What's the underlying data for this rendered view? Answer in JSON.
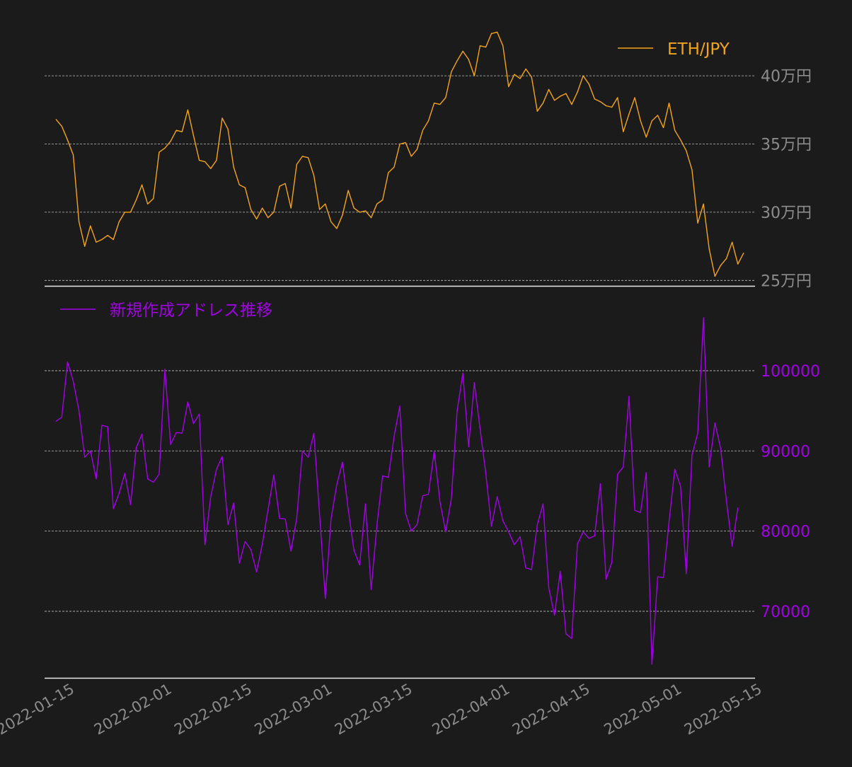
{
  "colors": {
    "background": "#1b1b1b",
    "eth_line": "#f5a31a",
    "address_line": "#a300e8",
    "grid": "#bdbdbd",
    "axis_line": "#e8e8e8",
    "tick_label_gray": "#8c8c8c"
  },
  "chart_data": [
    {
      "type": "line",
      "panel": "top",
      "legend_label": "ETH/JPY",
      "legend_position": "top-right",
      "y_axis_side": "right",
      "ylim": [
        246000,
        440000
      ],
      "yticks": [
        250000,
        300000,
        350000,
        400000
      ],
      "ytick_labels": [
        "25万円",
        "30万円",
        "35万円",
        "40万円"
      ],
      "x_start": "2022-01-12",
      "x_end": "2022-05-10",
      "series": [
        {
          "name": "ETH/JPY",
          "values": [
            368000,
            363000,
            353000,
            342000,
            293000,
            275000,
            290000,
            278000,
            280000,
            283000,
            280000,
            293000,
            300000,
            300000,
            309000,
            320000,
            306000,
            310000,
            344000,
            347000,
            352000,
            360000,
            359000,
            375000,
            356000,
            338000,
            337000,
            332000,
            338000,
            369000,
            361000,
            333000,
            320000,
            318000,
            302000,
            295000,
            303000,
            296000,
            300000,
            319000,
            321000,
            303000,
            335000,
            341000,
            340000,
            327000,
            302000,
            306000,
            293000,
            288000,
            298000,
            316000,
            303000,
            300000,
            301000,
            296000,
            306000,
            309000,
            329000,
            333000,
            350000,
            351000,
            341000,
            346000,
            360000,
            367000,
            380000,
            379000,
            384000,
            403000,
            411000,
            418000,
            412000,
            400000,
            422000,
            421000,
            431000,
            432000,
            422000,
            392000,
            401000,
            398000,
            405000,
            399000,
            374000,
            380000,
            390000,
            382000,
            385000,
            387000,
            379000,
            388000,
            400000,
            394000,
            383000,
            381000,
            378000,
            377000,
            384000,
            359000,
            372000,
            384000,
            367000,
            355000,
            367000,
            371000,
            362000,
            380000,
            360000,
            353000,
            345000,
            331000,
            292000,
            306000,
            273000,
            253000,
            261000,
            266000,
            278000,
            262000,
            270000
          ]
        }
      ]
    },
    {
      "type": "line",
      "panel": "bottom",
      "legend_label": "新規作成アドレス推移",
      "legend_position": "top-left",
      "y_axis_side": "right",
      "ylim": [
        61700,
        109700
      ],
      "yticks": [
        70000,
        80000,
        90000,
        100000
      ],
      "ytick_labels": [
        "70000",
        "80000",
        "90000",
        "100000"
      ],
      "x_start": "2022-01-12",
      "x_end": "2022-05-10",
      "series": [
        {
          "name": "新規作成アドレス推移",
          "values": [
            93700,
            94200,
            101100,
            98700,
            95000,
            89200,
            90000,
            86500,
            93200,
            93000,
            82800,
            84700,
            87200,
            83300,
            90400,
            92100,
            86500,
            86100,
            87100,
            100200,
            90800,
            92300,
            92200,
            96100,
            93400,
            94600,
            78300,
            84300,
            87700,
            89300,
            80800,
            83500,
            76000,
            78700,
            77700,
            74900,
            78400,
            82700,
            87000,
            81600,
            81500,
            77500,
            81600,
            90000,
            89200,
            92200,
            82100,
            71600,
            81500,
            85800,
            88600,
            82700,
            77600,
            75800,
            83400,
            72700,
            80700,
            86900,
            86700,
            91800,
            95600,
            82200,
            80000,
            80800,
            84400,
            84600,
            90000,
            83700,
            79900,
            84100,
            95000,
            99700,
            90500,
            98500,
            92800,
            87200,
            80600,
            84300,
            81300,
            79900,
            78300,
            79300,
            75400,
            75200,
            80800,
            83400,
            72900,
            69500,
            75000,
            67200,
            66600,
            78400,
            79900,
            79100,
            79400,
            85900,
            74000,
            76100,
            87100,
            88000,
            96800,
            82600,
            82300,
            87300,
            63400,
            74300,
            74200,
            81200,
            87700,
            85600,
            74700,
            89500,
            92200,
            106600,
            88000,
            93500,
            90300,
            83800,
            78100,
            82900
          ]
        }
      ]
    }
  ],
  "x_axis": {
    "tick_dates": [
      "2022-01-15",
      "2022-02-01",
      "2022-02-15",
      "2022-03-01",
      "2022-03-15",
      "2022-04-01",
      "2022-04-15",
      "2022-05-01",
      "2022-05-15"
    ],
    "tick_labels": [
      "2022-01-15",
      "2022-02-01",
      "2022-02-15",
      "2022-03-01",
      "2022-03-15",
      "2022-04-01",
      "2022-04-15",
      "2022-05-01",
      "2022-05-15"
    ]
  }
}
